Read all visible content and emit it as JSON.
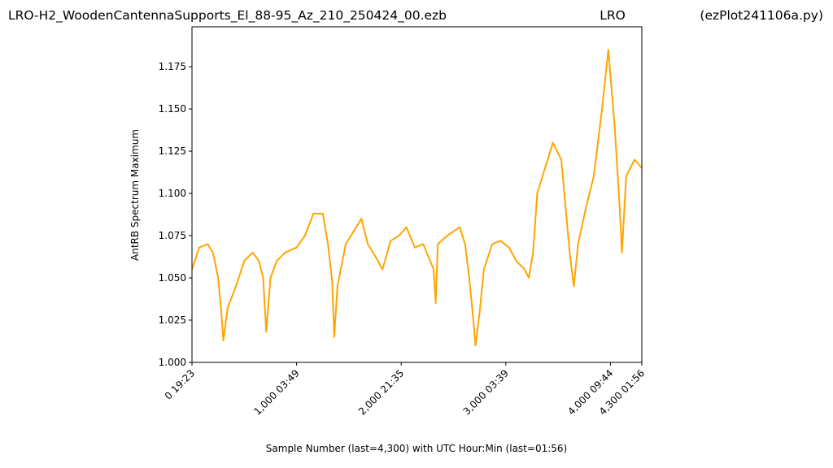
{
  "chart_data": {
    "type": "line",
    "title_parts": [
      "LRO-H2_WoodenCantennaSupports_El_88-95_Az_210_250424_00.ezb",
      "LRO",
      "(ezPlot241106a.py)"
    ],
    "xlabel": "Sample Number (last=4,300) with UTC Hour:Min (last=01:56)",
    "ylabel": "AntRB Spectrum Maximum",
    "xlim": [
      0,
      4300
    ],
    "ylim": [
      1.0,
      1.1986
    ],
    "xticks": [
      {
        "value": 0,
        "label": "0  19:23"
      },
      {
        "value": 1000,
        "label": "1,000  03:49"
      },
      {
        "value": 2000,
        "label": "2,000  21:35"
      },
      {
        "value": 3000,
        "label": "3,000  03:39"
      },
      {
        "value": 4000,
        "label": "4,000  09:44"
      },
      {
        "value": 4300,
        "label": "4,300  01:56"
      }
    ],
    "yticks": [
      {
        "value": 1.0,
        "label": "1.000"
      },
      1.025,
      {
        "value": 1.05,
        "label": "1.050"
      },
      1.075,
      {
        "value": 1.1,
        "label": "1.100"
      },
      1.125,
      {
        "value": 1.15,
        "label": "1.150"
      },
      1.175
    ],
    "x": [
      0,
      70,
      150,
      200,
      250,
      280,
      300,
      340,
      420,
      500,
      580,
      640,
      680,
      710,
      750,
      810,
      890,
      1000,
      1080,
      1160,
      1250,
      1300,
      1340,
      1360,
      1390,
      1470,
      1550,
      1620,
      1680,
      1760,
      1820,
      1900,
      1980,
      2050,
      2130,
      2210,
      2310,
      2330,
      2350,
      2440,
      2560,
      2610,
      2650,
      2690,
      2710,
      2750,
      2790,
      2870,
      2950,
      3030,
      3100,
      3180,
      3220,
      3260,
      3300,
      3450,
      3530,
      3610,
      3650,
      3690,
      3760,
      3840,
      3920,
      3980,
      4040,
      4090,
      4110,
      4150,
      4230,
      4300
    ],
    "series": [
      {
        "name": "AntRB",
        "color": "#ffa500",
        "values": [
          1.055,
          1.068,
          1.07,
          1.065,
          1.05,
          1.03,
          1.013,
          1.032,
          1.045,
          1.06,
          1.065,
          1.06,
          1.05,
          1.018,
          1.05,
          1.06,
          1.065,
          1.068,
          1.075,
          1.088,
          1.088,
          1.07,
          1.048,
          1.015,
          1.045,
          1.07,
          1.078,
          1.085,
          1.07,
          1.062,
          1.055,
          1.072,
          1.075,
          1.08,
          1.068,
          1.07,
          1.055,
          1.035,
          1.07,
          1.075,
          1.08,
          1.07,
          1.05,
          1.025,
          1.01,
          1.03,
          1.055,
          1.07,
          1.072,
          1.068,
          1.06,
          1.055,
          1.05,
          1.065,
          1.1,
          1.13,
          1.12,
          1.065,
          1.045,
          1.07,
          1.09,
          1.11,
          1.15,
          1.185,
          1.14,
          1.09,
          1.065,
          1.11,
          1.12,
          1.115
        ]
      }
    ],
    "grid": false
  }
}
